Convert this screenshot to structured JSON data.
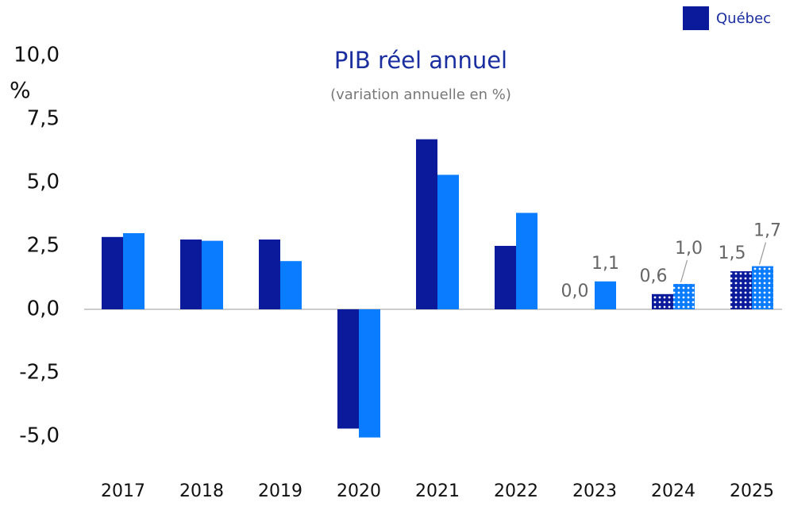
{
  "chart_data": {
    "type": "bar",
    "title": "PIB réel annuel",
    "subtitle": "(variation annuelle en %)",
    "y_label": "%",
    "categories": [
      "2017",
      "2018",
      "2019",
      "2020",
      "2021",
      "2022",
      "2023",
      "2024",
      "2025"
    ],
    "series": [
      {
        "name": "Québec",
        "color": "#0a1a9a",
        "values": [
          2.85,
          2.75,
          2.75,
          -4.7,
          6.7,
          2.5,
          0.0,
          0.6,
          1.5
        ],
        "value_labels": [
          null,
          null,
          null,
          null,
          null,
          null,
          "0,0",
          "0,6",
          "1,5"
        ]
      },
      {
        "color": "#0a7cff",
        "values": [
          3.0,
          2.7,
          1.9,
          -5.05,
          5.3,
          3.8,
          1.1,
          1.0,
          1.7
        ],
        "value_labels": [
          null,
          null,
          null,
          null,
          null,
          null,
          "1,1",
          "1,0",
          "1,7"
        ]
      }
    ],
    "patterned": [
      false,
      false,
      false,
      false,
      false,
      false,
      false,
      true,
      true
    ],
    "ylim": [
      -5,
      10
    ],
    "yticks": [
      {
        "value": -5,
        "label": "-5,0"
      },
      {
        "value": -2.5,
        "label": "-2,5"
      },
      {
        "value": 0,
        "label": "0,0"
      },
      {
        "value": 2.5,
        "label": "2,5"
      },
      {
        "value": 5,
        "label": "5,0"
      },
      {
        "value": 7.5,
        "label": "7,5"
      },
      {
        "value": 10,
        "label": "10,0"
      }
    ],
    "grid": false,
    "legend": "top-right"
  }
}
